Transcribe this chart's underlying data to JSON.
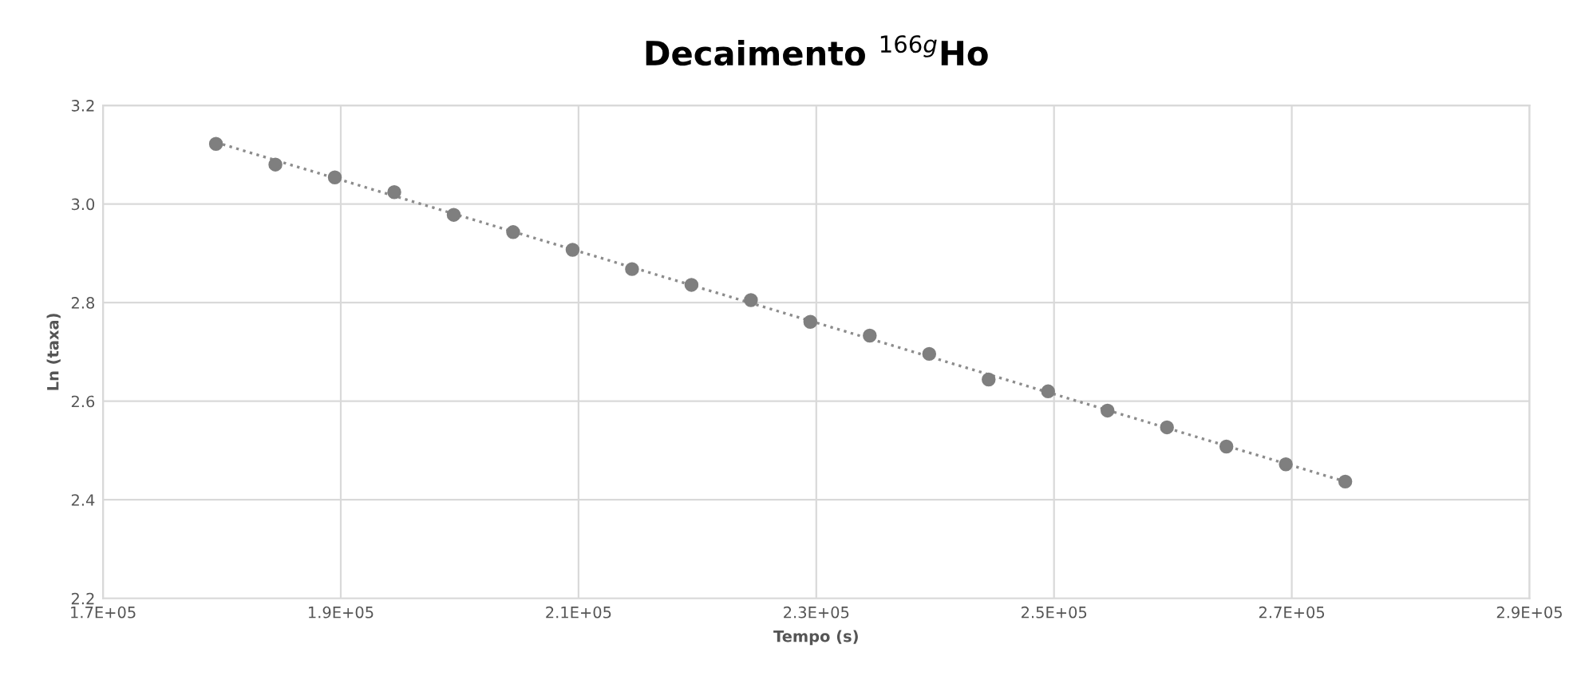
{
  "chart_data": {
    "type": "scatter",
    "title": "Decaimento $^{166g}$Ho",
    "xlabel": "Tempo (s)",
    "ylabel": "Ln (taxa)",
    "x": [
      179500,
      184500,
      189500,
      194500,
      199500,
      204500,
      209500,
      214500,
      219500,
      224500,
      229500,
      234500,
      239500,
      244500,
      249500,
      254500,
      259500,
      264500,
      269500,
      274500
    ],
    "series": [
      {
        "color": "#7f7f7f",
        "marker": "circle",
        "values": [
          3.122,
          3.08,
          3.054,
          3.024,
          2.978,
          2.943,
          2.907,
          2.868,
          2.836,
          2.805,
          2.761,
          2.733,
          2.696,
          2.644,
          2.62,
          2.581,
          2.547,
          2.508,
          2.472,
          2.437
        ]
      },
      {
        "type": "line",
        "color": "#8c8c8c",
        "line_style": "dotted",
        "marker": "none",
        "x": [
          179500,
          274500
        ],
        "values": [
          3.125,
          2.437
        ]
      }
    ],
    "xlim": [
      170000,
      290000
    ],
    "xticks": [
      {
        "value": 170000,
        "label": "1.7E+05"
      },
      {
        "value": 190000,
        "label": "1.9E+05"
      },
      {
        "value": 210000,
        "label": "2.1E+05"
      },
      {
        "value": 230000,
        "label": "2.3E+05"
      },
      {
        "value": 250000,
        "label": "2.5E+05"
      },
      {
        "value": 270000,
        "label": "2.7E+05"
      },
      {
        "value": 290000,
        "label": "2.9E+05"
      }
    ],
    "ylim": [
      2.2,
      3.2
    ],
    "yticks": [
      {
        "value": 2.2,
        "label": "2.2"
      },
      {
        "value": 2.4,
        "label": "2.4"
      },
      {
        "value": 2.6,
        "label": "2.6"
      },
      {
        "value": 2.8,
        "label": "2.8"
      },
      {
        "value": 3.0,
        "label": "3.0"
      },
      {
        "value": 3.2,
        "label": "3.2"
      }
    ],
    "grid": true
  }
}
